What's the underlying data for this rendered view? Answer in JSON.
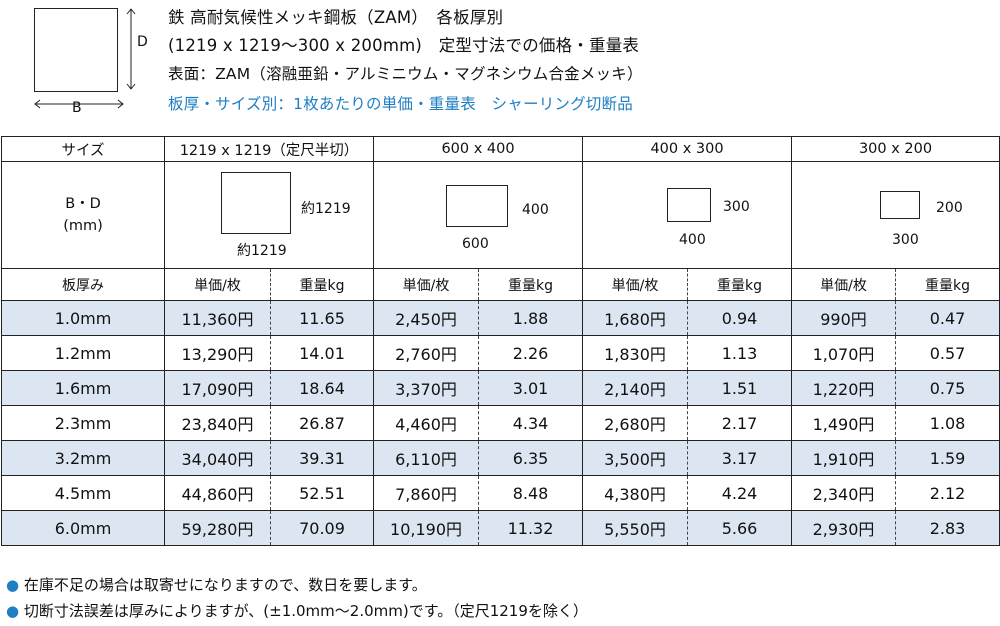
{
  "header": {
    "diagram": {
      "d_label": "D",
      "b_label": "B"
    },
    "line1": "鉄 高耐気候性メッキ鋼板（ZAM）　各板厚別",
    "line2": "(1219 x 1219〜300 x 200mm)　定型寸法での価格・重量表",
    "line3": "表面：ZAM（溶融亜鉛・アルミニウム・マグネシウム合金メッキ）",
    "line4": "板厚・サイズ別：1枚あたりの単価・重量表　シャーリング切断品"
  },
  "table": {
    "size_label": "サイズ",
    "bd_label_line1": "B・D",
    "bd_label_line2": "(mm)",
    "thickness_label": "板厚み",
    "unit_price_label": "単価/枚",
    "weight_label": "重量kg",
    "sizes": [
      {
        "name": "1219 x 1219（定尺半切）",
        "b": "約1219",
        "d": "約1219"
      },
      {
        "name": "600 x 400",
        "b": "600",
        "d": "400"
      },
      {
        "name": "400 x 300",
        "b": "400",
        "d": "300"
      },
      {
        "name": "300 x 200",
        "b": "300",
        "d": "200"
      }
    ],
    "rows": [
      {
        "thickness": "1.0mm",
        "cells": [
          [
            "11,360円",
            "11.65"
          ],
          [
            "2,450円",
            "1.88"
          ],
          [
            "1,680円",
            "0.94"
          ],
          [
            "990円",
            "0.47"
          ]
        ]
      },
      {
        "thickness": "1.2mm",
        "cells": [
          [
            "13,290円",
            "14.01"
          ],
          [
            "2,760円",
            "2.26"
          ],
          [
            "1,830円",
            "1.13"
          ],
          [
            "1,070円",
            "0.57"
          ]
        ]
      },
      {
        "thickness": "1.6mm",
        "cells": [
          [
            "17,090円",
            "18.64"
          ],
          [
            "3,370円",
            "3.01"
          ],
          [
            "2,140円",
            "1.51"
          ],
          [
            "1,220円",
            "0.75"
          ]
        ]
      },
      {
        "thickness": "2.3mm",
        "cells": [
          [
            "23,840円",
            "26.87"
          ],
          [
            "4,460円",
            "4.34"
          ],
          [
            "2,680円",
            "2.17"
          ],
          [
            "1,490円",
            "1.08"
          ]
        ]
      },
      {
        "thickness": "3.2mm",
        "cells": [
          [
            "34,040円",
            "39.31"
          ],
          [
            "6,110円",
            "6.35"
          ],
          [
            "3,500円",
            "3.17"
          ],
          [
            "1,910円",
            "1.59"
          ]
        ]
      },
      {
        "thickness": "4.5mm",
        "cells": [
          [
            "44,860円",
            "52.51"
          ],
          [
            "7,860円",
            "8.48"
          ],
          [
            "4,380円",
            "4.24"
          ],
          [
            "2,340円",
            "2.12"
          ]
        ]
      },
      {
        "thickness": "6.0mm",
        "cells": [
          [
            "59,280円",
            "70.09"
          ],
          [
            "10,190円",
            "11.32"
          ],
          [
            "5,550円",
            "5.66"
          ],
          [
            "2,930円",
            "2.83"
          ]
        ]
      }
    ]
  },
  "notes": {
    "bullet": "●",
    "note1": "在庫不足の場合は取寄せになりますので、数日を要します。",
    "note2": "切断寸法誤差は厚みによりますが、(±1.0mm〜2.0mm)です。（定尺1219を除く）"
  },
  "colors": {
    "accent": "#1e7fc3",
    "row_shade": "#dce6f2"
  }
}
